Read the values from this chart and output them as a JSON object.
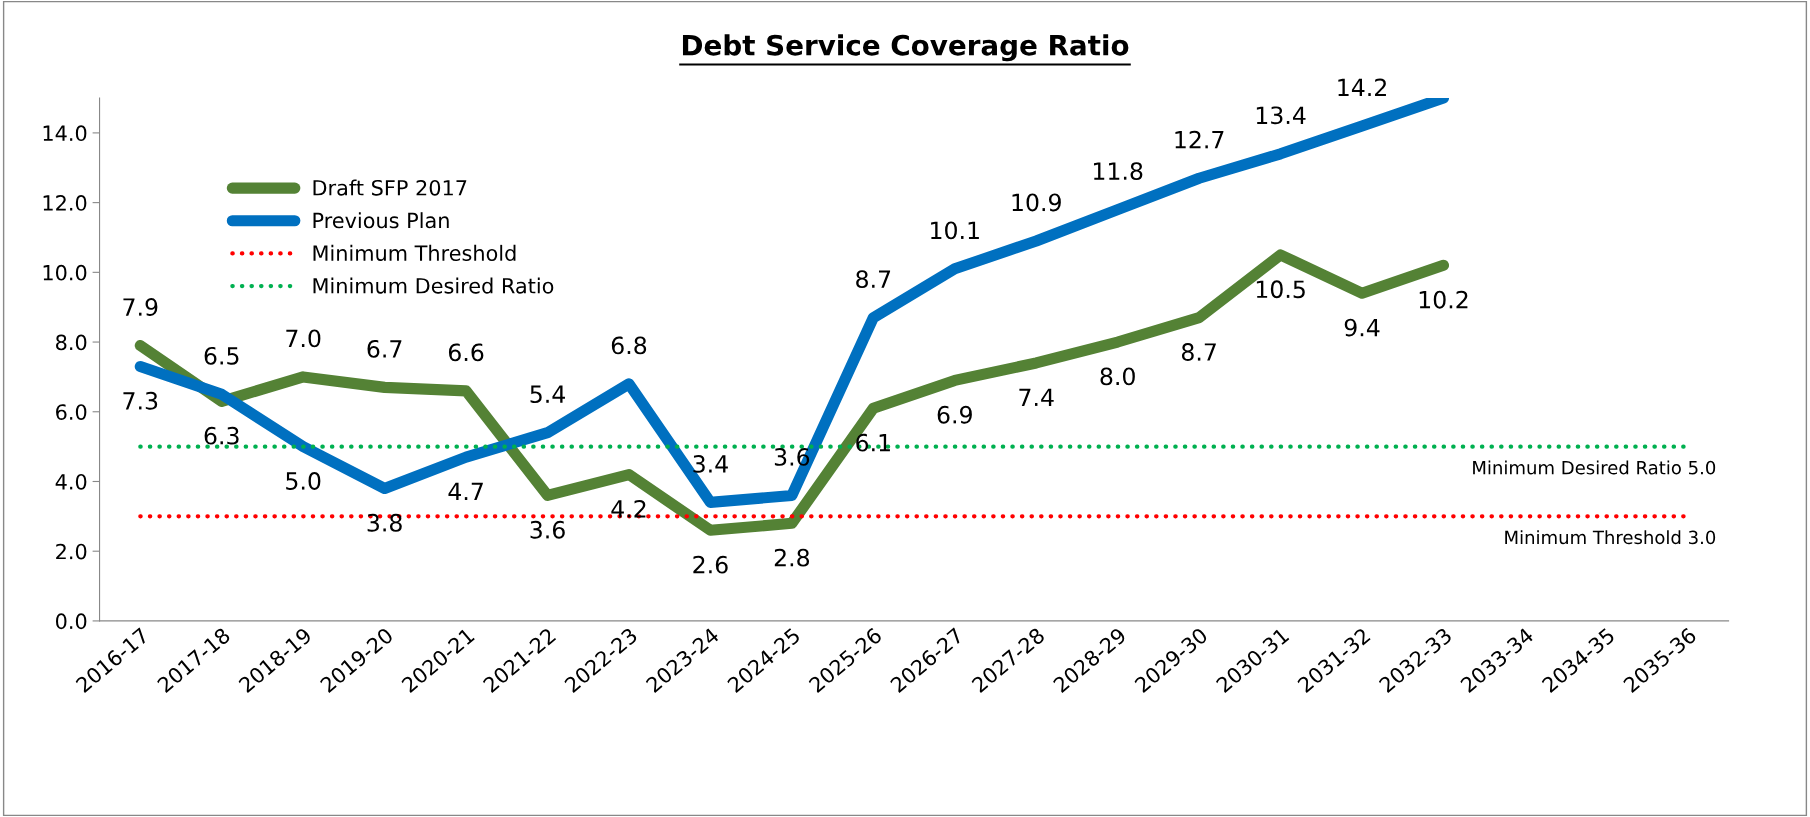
{
  "chart_data": {
    "type": "line",
    "title": "Debt Service Coverage Ratio",
    "categories": [
      "2016-17",
      "2017-18",
      "2018-19",
      "2019-20",
      "2020-21",
      "2021-22",
      "2022-23",
      "2023-24",
      "2024-25",
      "2025-26",
      "2026-27",
      "2027-28",
      "2028-29",
      "2029-30",
      "2030-31",
      "2031-32",
      "2032-33",
      "2033-34",
      "2034-35",
      "2035-36"
    ],
    "series": [
      {
        "name": "Draft SFP 2017",
        "color": "#548235",
        "values": [
          7.9,
          6.3,
          7.0,
          6.7,
          6.6,
          3.6,
          4.2,
          2.6,
          2.8,
          6.1,
          6.9,
          7.4,
          8.0,
          8.7,
          10.5,
          9.4,
          10.2,
          null,
          null,
          null
        ],
        "value_labels": [
          "7.9",
          "6.3",
          "7.0",
          "6.7",
          "6.6",
          "3.6",
          "4.2",
          "2.6",
          "2.8",
          "6.1",
          "6.9",
          "7.4",
          "8.0",
          "8.7",
          "10.5",
          "9.4",
          "10.2",
          null,
          null,
          null
        ]
      },
      {
        "name": "Previous Plan",
        "color": "#0070c0",
        "values": [
          7.3,
          6.5,
          5.0,
          3.8,
          4.7,
          5.4,
          6.8,
          3.4,
          3.6,
          8.7,
          10.1,
          10.9,
          11.8,
          12.7,
          13.4,
          14.2,
          15.0,
          null,
          null,
          null
        ],
        "value_labels": [
          "7.3",
          "6.5",
          "5.0",
          "3.8",
          "4.7",
          "5.4",
          "6.8",
          "3.4",
          "3.6",
          "8.7",
          "10.1",
          "10.9",
          "11.8",
          "12.7",
          "13.4",
          "14.2",
          null,
          null,
          null,
          null
        ]
      },
      {
        "name": "Minimum Threshold",
        "color": "#ff0000",
        "line_style": "dotted",
        "values": [
          3.0,
          3.0,
          3.0,
          3.0,
          3.0,
          3.0,
          3.0,
          3.0,
          3.0,
          3.0,
          3.0,
          3.0,
          3.0,
          3.0,
          3.0,
          3.0,
          3.0,
          3.0,
          3.0,
          3.0
        ]
      },
      {
        "name": "Minimum Desired Ratio",
        "color": "#00b050",
        "line_style": "dotted",
        "values": [
          5.0,
          5.0,
          5.0,
          5.0,
          5.0,
          5.0,
          5.0,
          5.0,
          5.0,
          5.0,
          5.0,
          5.0,
          5.0,
          5.0,
          5.0,
          5.0,
          5.0,
          5.0,
          5.0,
          5.0
        ]
      }
    ],
    "annotations": [
      {
        "text": "Minimum Desired Ratio 5.0",
        "x": "2035-36",
        "y": 5.0
      },
      {
        "text": "Minimum Threshold 3.0",
        "x": "2035-36",
        "y": 3.0
      }
    ],
    "ylim": [
      0,
      15
    ],
    "yticks": [
      {
        "value": 0,
        "label": "0.0"
      },
      {
        "value": 2,
        "label": "2.0"
      },
      {
        "value": 4,
        "label": "4.0"
      },
      {
        "value": 6,
        "label": "6.0"
      },
      {
        "value": 8,
        "label": "8.0"
      },
      {
        "value": 10,
        "label": "10.0"
      },
      {
        "value": 12,
        "label": "12.0"
      },
      {
        "value": 14,
        "label": "14.0"
      }
    ],
    "grid": false,
    "legend": "top left",
    "marker": "none"
  }
}
